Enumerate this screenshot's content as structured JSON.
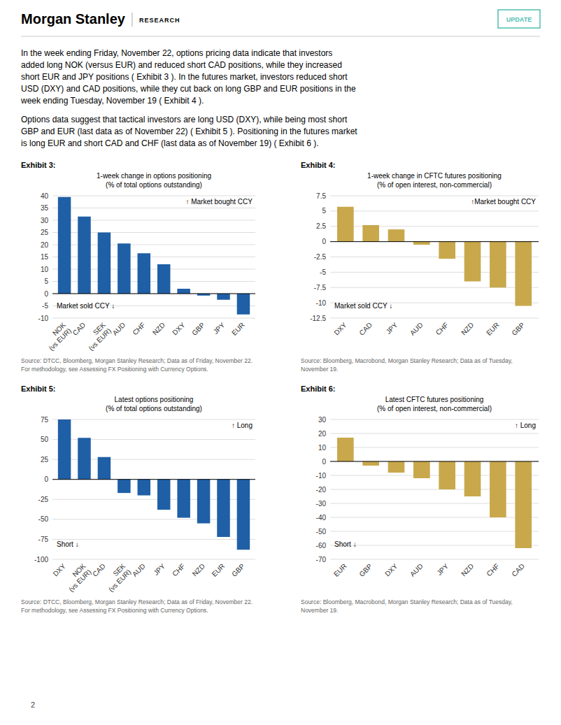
{
  "header_title": "Morgan Stanley",
  "header_subtitle": "RESEARCH",
  "header_update": "UPDATE",
  "header_update_color": "#4dbfb0",
  "body": [
    [
      "In the week ending Friday, November 22, options pricing data indicate that investors",
      "added long NOK (versus EUR) and reduced short CAD positions, while they increased",
      "short EUR and JPY positions ( Exhibit 3 ). In the futures market, investors reduced short",
      "USD (DXY) and CAD positions, while they cut back on long GBP and EUR positions in the",
      "week ending Tuesday, November 19 ( Exhibit 4 )."
    ],
    [
      "Options data suggest that tactical investors are long USD (DXY), while being most short",
      "GBP and EUR (last data as of November 22) ( Exhibit 5 ). Positioning in the futures market",
      "is long EUR and short CAD and CHF (last data as of November 19) ( Exhibit 6 )."
    ]
  ],
  "page_number": "2",
  "chart_data": [
    {
      "type": "bar",
      "title": "Exhibit 3:",
      "subtitle": [
        "1-week change in options positioning",
        "(% of total options outstanding)"
      ],
      "categories": [
        "NOK\n(vs EUR)",
        "CAD",
        "SEK\n(vs EUR)",
        "AUD",
        "CHF",
        "NZD",
        "DXY",
        "GBP",
        "JPY",
        "EUR"
      ],
      "values": [
        39.5,
        31.5,
        25.0,
        20.5,
        16.5,
        12.0,
        2.0,
        -0.8,
        -2.5,
        -8.5
      ],
      "color": "#1f5fa6",
      "ylim": [
        -10,
        40
      ],
      "yticks": [
        -10,
        -5,
        0,
        5,
        10,
        15,
        20,
        25,
        30,
        35,
        40
      ],
      "grid": true,
      "annotations": [
        "↑ Market bought CCY",
        "Market sold CCY ↓"
      ],
      "source": [
        "Source: DTCC, Bloomberg, Morgan Stanley Research; Data as of Friday, November 22.",
        "For methodology, see Assessing FX Positioning with Currency Options."
      ]
    },
    {
      "type": "bar",
      "title": "Exhibit 4:",
      "subtitle": [
        "1-week change in CFTC futures positioning",
        "(% of open interest, non-commercial)"
      ],
      "categories": [
        "DXY",
        "CAD",
        "JPY",
        "AUD",
        "CHF",
        "NZD",
        "EUR",
        "GBP"
      ],
      "values": [
        5.7,
        2.7,
        2.0,
        -0.5,
        -2.8,
        -6.5,
        -7.5,
        -10.5
      ],
      "color": "#c8a84b",
      "ylim": [
        -12.5,
        7.5
      ],
      "yticks": [
        -12.5,
        -10,
        -7.5,
        -5,
        -2.5,
        0,
        2.5,
        5,
        7.5
      ],
      "grid": true,
      "annotations": [
        "↑Market bought CCY",
        "Market sold CCY ↓"
      ],
      "source": [
        "Source: Bloomberg, Macrobond, Morgan Stanley Research; Data as of Tuesday,",
        "November 19."
      ]
    },
    {
      "type": "bar",
      "title": "Exhibit 5:",
      "subtitle": [
        "Latest options positioning",
        "(% of total options outstanding)"
      ],
      "categories": [
        "DXY",
        "NOK\n(vs EUR)",
        "CAD",
        "SEK\n(vs EUR)",
        "AUD",
        "JPY",
        "CHF",
        "NZD",
        "EUR",
        "GBP"
      ],
      "values": [
        75.0,
        52.0,
        28.0,
        -17.0,
        -20.0,
        -38.0,
        -48.0,
        -55.0,
        -72.0,
        -88.0
      ],
      "color": "#1f5fa6",
      "ylim": [
        -100,
        75
      ],
      "yticks": [
        -100,
        -75,
        -50,
        -25,
        0,
        25,
        50,
        75
      ],
      "grid": true,
      "annotations": [
        "↑ Long",
        "Short ↓"
      ],
      "source": [
        "Source: DTCC, Bloomberg, Morgan Stanley Research; Data as of Friday, November 22.",
        "For methodology, see Assessing FX Positioning with Currency Options."
      ]
    },
    {
      "type": "bar",
      "title": "Exhibit 6:",
      "subtitle": [
        "Latest CFTC futures positioning",
        "(% of open interest, non-commercial)"
      ],
      "categories": [
        "EUR",
        "GBP",
        "DXY",
        "AUD",
        "JPY",
        "NZD",
        "CHF",
        "CAD"
      ],
      "values": [
        17.0,
        -3.0,
        -8.0,
        -12.0,
        -20.0,
        -25.0,
        -40.0,
        -62.0
      ],
      "color": "#c8a84b",
      "ylim": [
        -70,
        30
      ],
      "yticks": [
        -70,
        -60,
        -50,
        -40,
        -30,
        -20,
        -10,
        0,
        10,
        20,
        30
      ],
      "grid": true,
      "annotations": [
        "↑ Long",
        "Short ↓"
      ],
      "source": [
        "Source: Bloomberg, Macrobond, Morgan Stanley Research; Data as of Tuesday,",
        "November 19."
      ]
    }
  ]
}
